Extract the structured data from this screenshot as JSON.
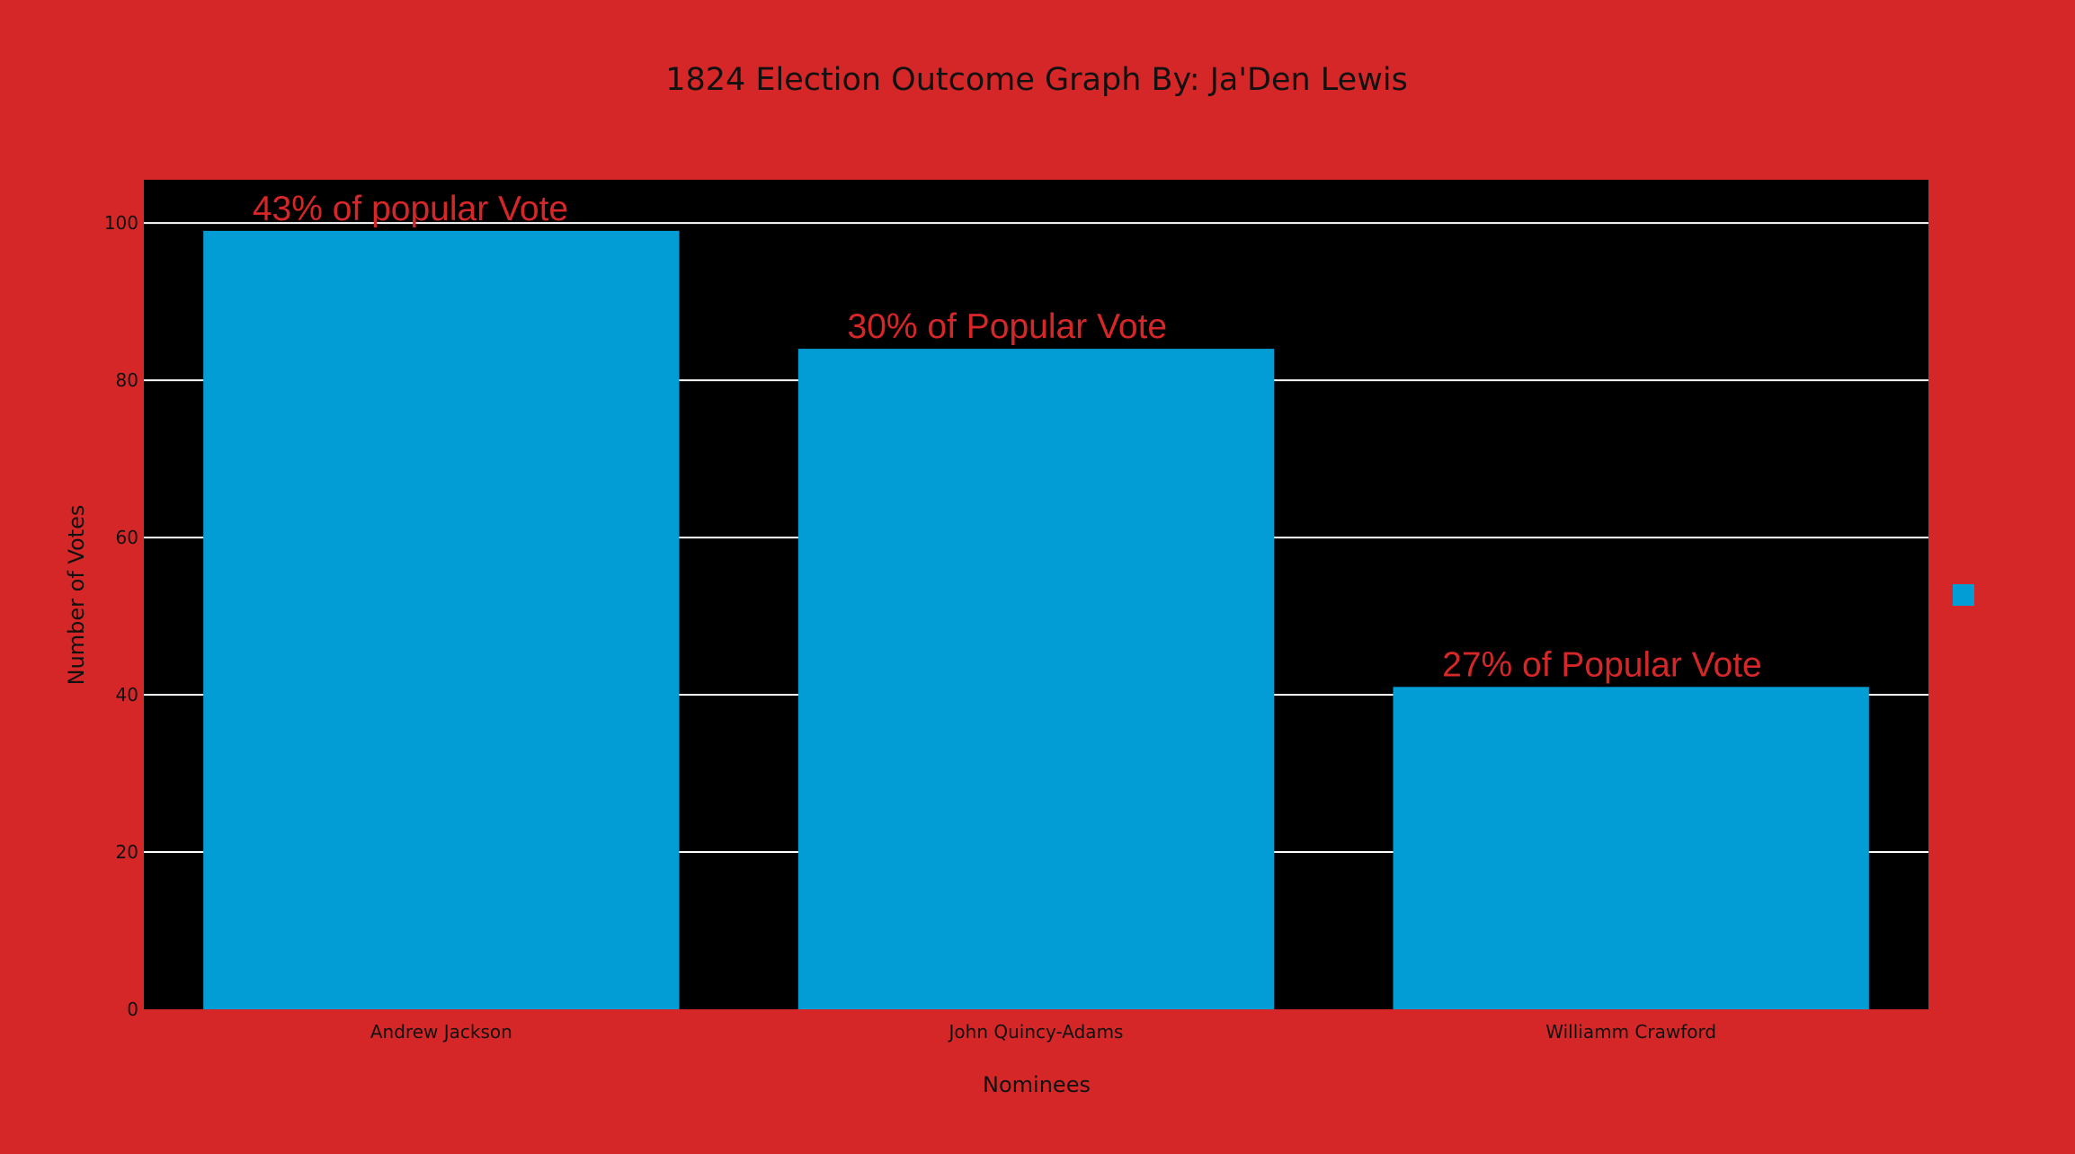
{
  "chart_data": {
    "type": "bar",
    "title": "1824 Election Outcome Graph By: Ja'Den Lewis",
    "xlabel": "Nominees",
    "ylabel": "Number of Votes",
    "categories": [
      "Andrew Jackson",
      "John Quincy-Adams",
      "Williamm Crawford"
    ],
    "series": [
      {
        "values": [
          99,
          84,
          41
        ]
      }
    ],
    "annotations": [
      "43% of popular Vote",
      "30% of Popular Vote",
      "27% of Popular Vote"
    ],
    "ylim": [
      0,
      105.5
    ],
    "yticks": [
      0,
      20,
      40,
      60,
      80,
      100
    ],
    "grid": true,
    "legend": "right",
    "colors": {
      "page_background": "#d62728",
      "plot_background": "#000000",
      "bar": "#039dd6",
      "grid": "#ffffff",
      "annotation_text": "#d62728"
    }
  }
}
